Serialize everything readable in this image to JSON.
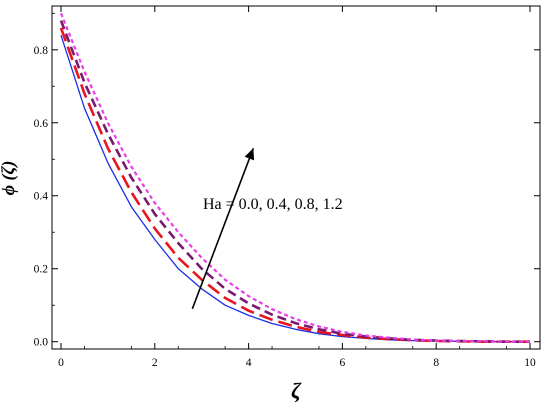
{
  "chart_data": {
    "type": "line",
    "title": "",
    "xlabel": "ζ",
    "ylabel": "ϕ (ζ)",
    "xlim": [
      0,
      10
    ],
    "ylim": [
      -0.02,
      0.92
    ],
    "xticks": [
      0,
      2,
      4,
      6,
      8,
      10
    ],
    "yticks": [
      0.0,
      0.2,
      0.4,
      0.6,
      0.8
    ],
    "grid": false,
    "legend": "none",
    "annotation": {
      "text": "Ha = 0.0, 0.4, 0.8, 1.2",
      "arrow_from": [
        2.8,
        0.09
      ],
      "arrow_to": [
        4.1,
        0.53
      ]
    },
    "x": [
      0,
      0.5,
      1,
      1.5,
      2,
      2.5,
      3,
      3.5,
      4,
      4.5,
      5,
      5.5,
      6,
      6.5,
      7,
      7.5,
      8,
      8.5,
      9,
      9.5,
      10
    ],
    "series": [
      {
        "color": "#1a2ee8",
        "dash": "solid",
        "values": [
          0.84,
          0.64,
          0.49,
          0.37,
          0.28,
          0.2,
          0.145,
          0.1,
          0.072,
          0.05,
          0.034,
          0.022,
          0.014,
          0.009,
          0.005,
          0.003,
          0.002,
          0.001,
          0.0,
          0.0,
          0.0
        ]
      },
      {
        "color": "#e8141e",
        "dash": "long-dash",
        "values": [
          0.86,
          0.68,
          0.53,
          0.41,
          0.31,
          0.23,
          0.17,
          0.12,
          0.085,
          0.06,
          0.041,
          0.027,
          0.018,
          0.011,
          0.007,
          0.004,
          0.002,
          0.001,
          0.0,
          0.0,
          0.0
        ]
      },
      {
        "color": "#7a1a6e",
        "dash": "dash",
        "values": [
          0.88,
          0.71,
          0.57,
          0.45,
          0.35,
          0.27,
          0.2,
          0.145,
          0.105,
          0.074,
          0.051,
          0.034,
          0.022,
          0.014,
          0.009,
          0.005,
          0.003,
          0.002,
          0.001,
          0.0,
          0.0
        ]
      },
      {
        "color": "#e83ee8",
        "dash": "short-dash",
        "values": [
          0.9,
          0.74,
          0.6,
          0.48,
          0.38,
          0.3,
          0.23,
          0.17,
          0.125,
          0.089,
          0.062,
          0.042,
          0.027,
          0.017,
          0.011,
          0.006,
          0.003,
          0.002,
          0.001,
          0.0,
          0.0
        ]
      }
    ]
  }
}
